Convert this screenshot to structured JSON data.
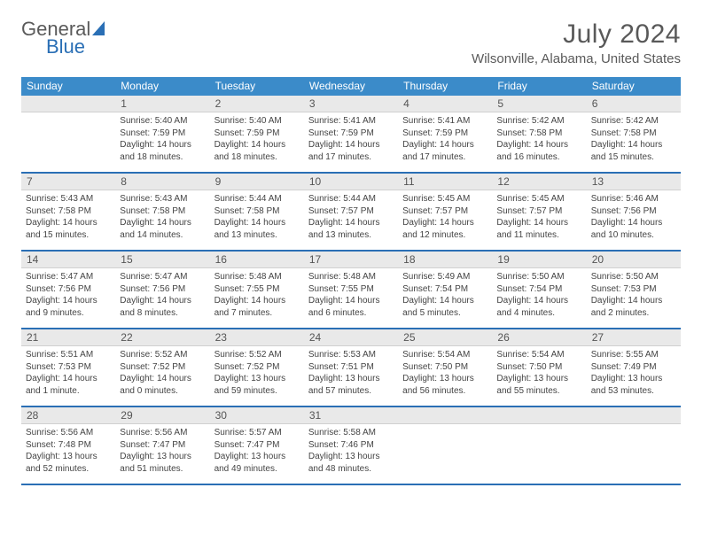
{
  "logo": {
    "part1": "General",
    "part2": "Blue"
  },
  "title": "July 2024",
  "subtitle": "Wilsonville, Alabama, United States",
  "colors": {
    "header_bg": "#3b8bc9",
    "header_text": "#ffffff",
    "daynum_bg": "#e9e9e9",
    "week_divider": "#2a6fb5",
    "text": "#444444"
  },
  "weekdays": [
    "Sunday",
    "Monday",
    "Tuesday",
    "Wednesday",
    "Thursday",
    "Friday",
    "Saturday"
  ],
  "weeks": [
    {
      "nums": [
        "",
        "1",
        "2",
        "3",
        "4",
        "5",
        "6"
      ],
      "cells": [
        null,
        {
          "sunrise": "5:40 AM",
          "sunset": "7:59 PM",
          "daylight": "14 hours and 18 minutes."
        },
        {
          "sunrise": "5:40 AM",
          "sunset": "7:59 PM",
          "daylight": "14 hours and 18 minutes."
        },
        {
          "sunrise": "5:41 AM",
          "sunset": "7:59 PM",
          "daylight": "14 hours and 17 minutes."
        },
        {
          "sunrise": "5:41 AM",
          "sunset": "7:59 PM",
          "daylight": "14 hours and 17 minutes."
        },
        {
          "sunrise": "5:42 AM",
          "sunset": "7:58 PM",
          "daylight": "14 hours and 16 minutes."
        },
        {
          "sunrise": "5:42 AM",
          "sunset": "7:58 PM",
          "daylight": "14 hours and 15 minutes."
        }
      ]
    },
    {
      "nums": [
        "7",
        "8",
        "9",
        "10",
        "11",
        "12",
        "13"
      ],
      "cells": [
        {
          "sunrise": "5:43 AM",
          "sunset": "7:58 PM",
          "daylight": "14 hours and 15 minutes."
        },
        {
          "sunrise": "5:43 AM",
          "sunset": "7:58 PM",
          "daylight": "14 hours and 14 minutes."
        },
        {
          "sunrise": "5:44 AM",
          "sunset": "7:58 PM",
          "daylight": "14 hours and 13 minutes."
        },
        {
          "sunrise": "5:44 AM",
          "sunset": "7:57 PM",
          "daylight": "14 hours and 13 minutes."
        },
        {
          "sunrise": "5:45 AM",
          "sunset": "7:57 PM",
          "daylight": "14 hours and 12 minutes."
        },
        {
          "sunrise": "5:45 AM",
          "sunset": "7:57 PM",
          "daylight": "14 hours and 11 minutes."
        },
        {
          "sunrise": "5:46 AM",
          "sunset": "7:56 PM",
          "daylight": "14 hours and 10 minutes."
        }
      ]
    },
    {
      "nums": [
        "14",
        "15",
        "16",
        "17",
        "18",
        "19",
        "20"
      ],
      "cells": [
        {
          "sunrise": "5:47 AM",
          "sunset": "7:56 PM",
          "daylight": "14 hours and 9 minutes."
        },
        {
          "sunrise": "5:47 AM",
          "sunset": "7:56 PM",
          "daylight": "14 hours and 8 minutes."
        },
        {
          "sunrise": "5:48 AM",
          "sunset": "7:55 PM",
          "daylight": "14 hours and 7 minutes."
        },
        {
          "sunrise": "5:48 AM",
          "sunset": "7:55 PM",
          "daylight": "14 hours and 6 minutes."
        },
        {
          "sunrise": "5:49 AM",
          "sunset": "7:54 PM",
          "daylight": "14 hours and 5 minutes."
        },
        {
          "sunrise": "5:50 AM",
          "sunset": "7:54 PM",
          "daylight": "14 hours and 4 minutes."
        },
        {
          "sunrise": "5:50 AM",
          "sunset": "7:53 PM",
          "daylight": "14 hours and 2 minutes."
        }
      ]
    },
    {
      "nums": [
        "21",
        "22",
        "23",
        "24",
        "25",
        "26",
        "27"
      ],
      "cells": [
        {
          "sunrise": "5:51 AM",
          "sunset": "7:53 PM",
          "daylight": "14 hours and 1 minute."
        },
        {
          "sunrise": "5:52 AM",
          "sunset": "7:52 PM",
          "daylight": "14 hours and 0 minutes."
        },
        {
          "sunrise": "5:52 AM",
          "sunset": "7:52 PM",
          "daylight": "13 hours and 59 minutes."
        },
        {
          "sunrise": "5:53 AM",
          "sunset": "7:51 PM",
          "daylight": "13 hours and 57 minutes."
        },
        {
          "sunrise": "5:54 AM",
          "sunset": "7:50 PM",
          "daylight": "13 hours and 56 minutes."
        },
        {
          "sunrise": "5:54 AM",
          "sunset": "7:50 PM",
          "daylight": "13 hours and 55 minutes."
        },
        {
          "sunrise": "5:55 AM",
          "sunset": "7:49 PM",
          "daylight": "13 hours and 53 minutes."
        }
      ]
    },
    {
      "nums": [
        "28",
        "29",
        "30",
        "31",
        "",
        "",
        ""
      ],
      "cells": [
        {
          "sunrise": "5:56 AM",
          "sunset": "7:48 PM",
          "daylight": "13 hours and 52 minutes."
        },
        {
          "sunrise": "5:56 AM",
          "sunset": "7:47 PM",
          "daylight": "13 hours and 51 minutes."
        },
        {
          "sunrise": "5:57 AM",
          "sunset": "7:47 PM",
          "daylight": "13 hours and 49 minutes."
        },
        {
          "sunrise": "5:58 AM",
          "sunset": "7:46 PM",
          "daylight": "13 hours and 48 minutes."
        },
        null,
        null,
        null
      ]
    }
  ],
  "labels": {
    "sunrise": "Sunrise:",
    "sunset": "Sunset:",
    "daylight": "Daylight:"
  }
}
